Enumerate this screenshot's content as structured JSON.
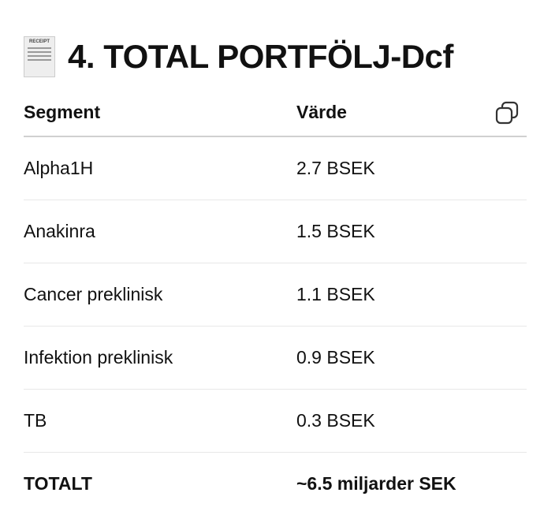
{
  "title": {
    "icon": "receipt-icon",
    "icon_text": "RECEIPT",
    "text": "4. TOTAL PORTFÖLJ-Dcf"
  },
  "table": {
    "headers": [
      "Segment",
      "Värde"
    ],
    "copy_icon": "copy-icon",
    "rows": [
      {
        "segment": "Alpha1H",
        "value": "2.7 BSEK"
      },
      {
        "segment": "Anakinra",
        "value": "1.5 BSEK"
      },
      {
        "segment": "Cancer preklinisk",
        "value": "1.1 BSEK"
      },
      {
        "segment": "Infektion preklinisk",
        "value": "0.9 BSEK"
      },
      {
        "segment": "TB",
        "value": "0.3 BSEK"
      }
    ],
    "total": {
      "segment": "TOTALT",
      "value": "~6.5 miljarder SEK"
    }
  }
}
